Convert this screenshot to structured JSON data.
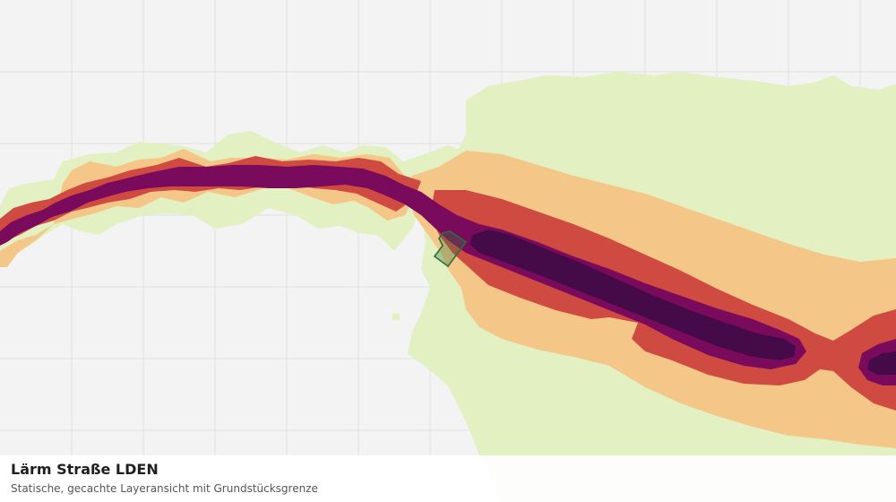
{
  "map": {
    "title": "Lärm Straße LDEN",
    "subtitle": "Statische, gecachte Layeransicht mit Grundstücksgrenze",
    "colors": {
      "background": "#f2f3f2",
      "grid": "#e0e2e0",
      "band_lightest": "#e2f0c2",
      "band_light": "#f4c688",
      "band_mid": "#cf4a40",
      "band_dark": "#7a0a5c",
      "band_darkest": "#450a48",
      "parcel_outline": "#2c6f3c"
    },
    "layers": [
      {
        "name": "noise-band-lightest"
      },
      {
        "name": "noise-band-light"
      },
      {
        "name": "noise-band-mid"
      },
      {
        "name": "noise-band-dark"
      },
      {
        "name": "noise-band-darkest"
      }
    ],
    "parcel": {
      "name": "parcel-boundary"
    }
  }
}
